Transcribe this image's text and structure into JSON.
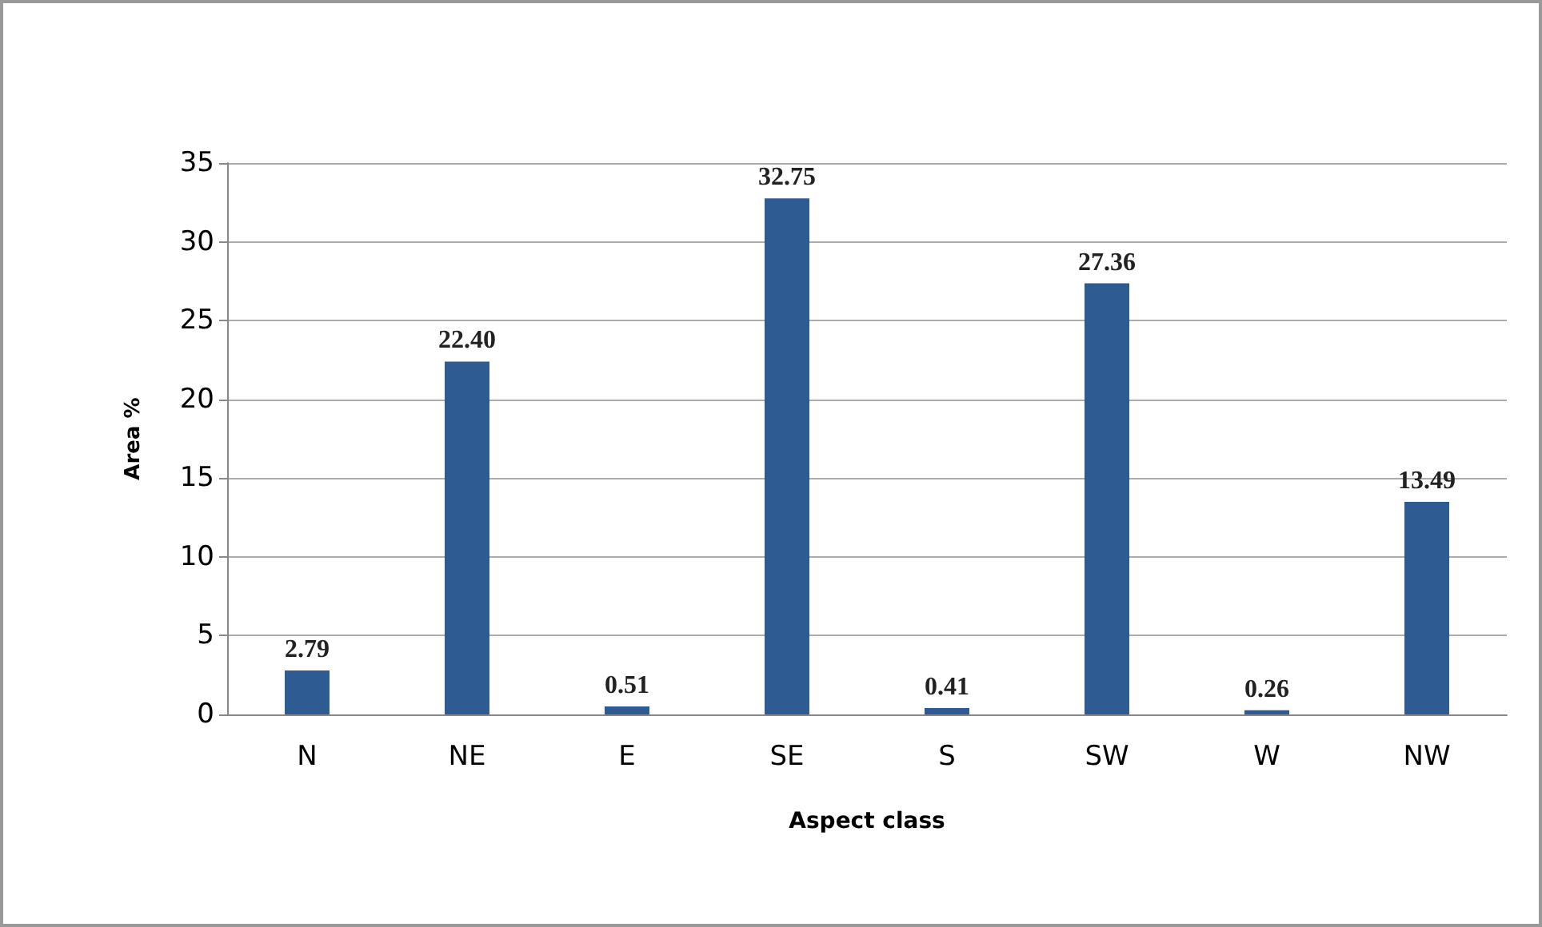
{
  "chart_data": {
    "type": "bar",
    "xlabel": "Aspect class",
    "ylabel": "Area %",
    "categories": [
      "N",
      "NE",
      "E",
      "SE",
      "S",
      "SW",
      "W",
      "NW"
    ],
    "values": [
      2.79,
      22.4,
      0.51,
      32.75,
      0.41,
      27.36,
      0.26,
      13.49
    ],
    "value_labels": [
      "2.79",
      "22.40",
      "0.51",
      "32.75",
      "0.41",
      "27.36",
      "0.26",
      "13.49"
    ],
    "color": "#2f5b93",
    "ylim": [
      0,
      35
    ],
    "yticks": [
      0,
      5,
      10,
      15,
      20,
      25,
      30,
      35
    ],
    "grid": "y"
  }
}
